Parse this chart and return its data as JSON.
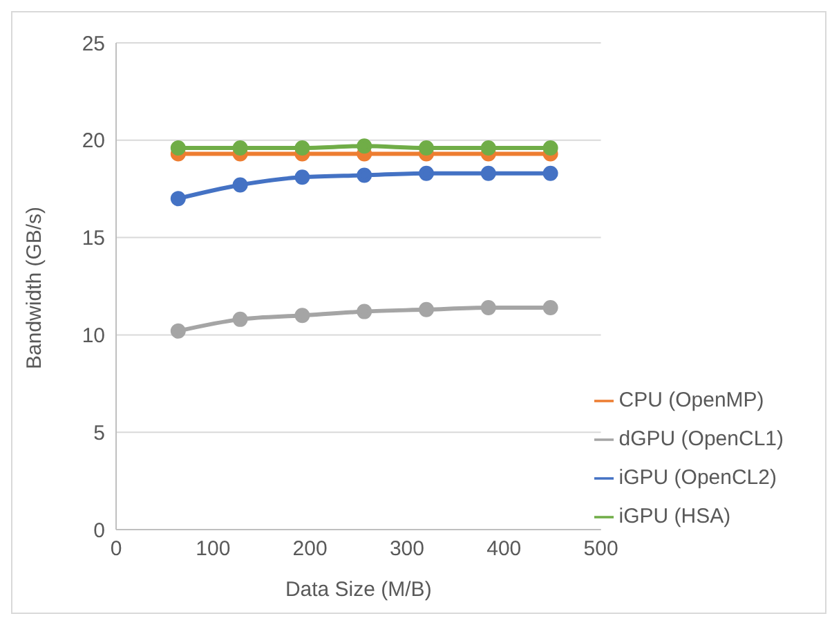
{
  "chart_data": {
    "type": "line",
    "xlabel": "Data Size (M/B)",
    "ylabel": "Bandwidth (GB/s)",
    "x": [
      64,
      128,
      192,
      256,
      320,
      384,
      448
    ],
    "series": [
      {
        "name": "CPU (OpenMP)",
        "color": "#ed7d31",
        "values": [
          19.3,
          19.3,
          19.3,
          19.3,
          19.3,
          19.3,
          19.3
        ]
      },
      {
        "name": "dGPU (OpenCL1)",
        "color": "#a5a5a5",
        "values": [
          10.2,
          10.8,
          11.0,
          11.2,
          11.3,
          11.4,
          11.4
        ]
      },
      {
        "name": "iGPU (OpenCL2)",
        "color": "#4472c4",
        "values": [
          17.0,
          17.7,
          18.1,
          18.2,
          18.3,
          18.3,
          18.3
        ]
      },
      {
        "name": "iGPU (HSA)",
        "color": "#70ad47",
        "values": [
          19.6,
          19.6,
          19.6,
          19.7,
          19.6,
          19.6,
          19.6
        ]
      }
    ],
    "xlim": [
      0,
      500
    ],
    "xticks": [
      0,
      100,
      200,
      300,
      400,
      500
    ],
    "ylim": [
      0,
      25
    ],
    "yticks": [
      0,
      5,
      10,
      15,
      20,
      25
    ],
    "grid": "y",
    "legend": "bottom right",
    "marker": "circle",
    "line_style": "solid"
  }
}
